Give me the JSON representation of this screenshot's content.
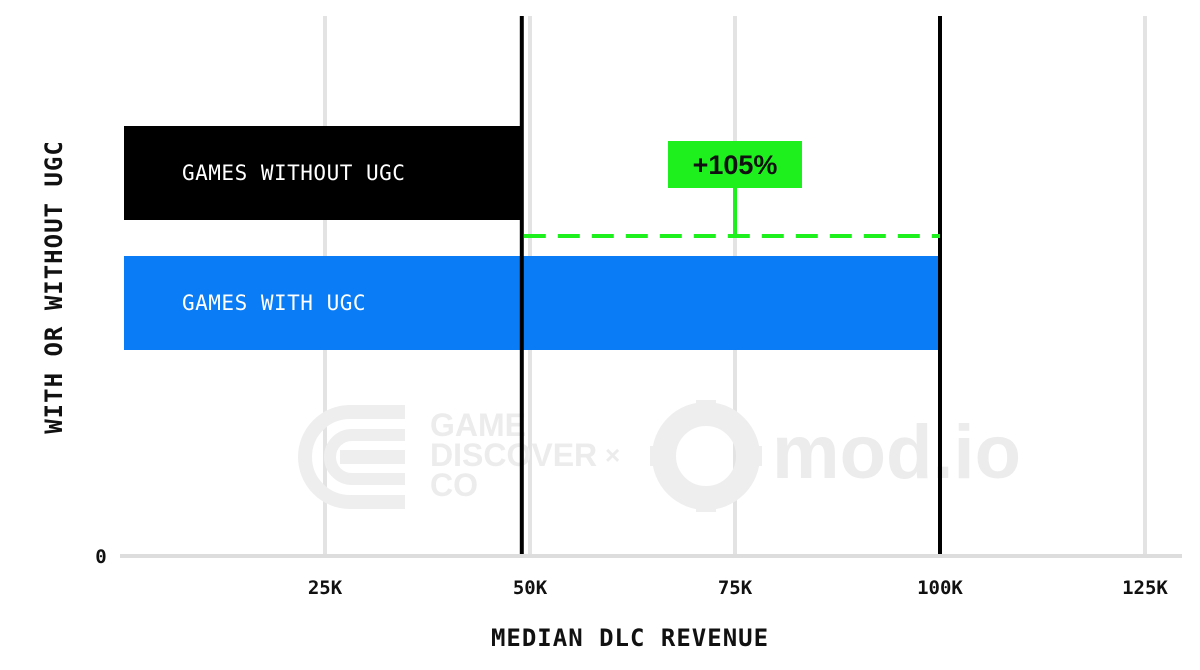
{
  "chart_data": {
    "type": "bar",
    "orientation": "horizontal",
    "ylabel": "WITH OR WITHOUT UGC",
    "xlabel": "MEDIAN DLC REVENUE",
    "categories": [
      "GAMES WITHOUT UGC",
      "GAMES WITH UGC"
    ],
    "values": [
      49000,
      100000
    ],
    "bar_colors": [
      "#000000",
      "#0a7cf5"
    ],
    "x_ticks": [
      {
        "value": 25000,
        "label": "25K"
      },
      {
        "value": 50000,
        "label": "50K"
      },
      {
        "value": 75000,
        "label": "75K"
      },
      {
        "value": 100000,
        "label": "100K"
      },
      {
        "value": 125000,
        "label": "125K"
      }
    ],
    "y_zero_label": "0",
    "xlim": [
      0,
      130000
    ],
    "grid": true,
    "reference_lines": [
      49000,
      100000
    ],
    "annotation": {
      "text": "+105%",
      "color": "#1ef01e",
      "at": 75000
    },
    "watermark": {
      "brand_left": "GAME DISCOVER CO",
      "separator": "×",
      "brand_right": "mod.io"
    }
  }
}
